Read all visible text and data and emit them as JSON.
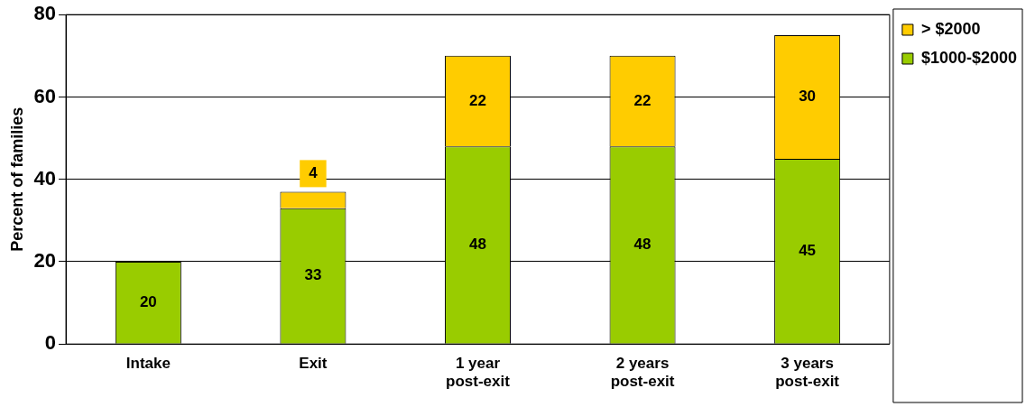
{
  "chart_data": {
    "type": "bar",
    "stacked": true,
    "ylabel": "Percent of families",
    "categories": [
      "Intake",
      "Exit",
      "1 year post-exit",
      "2 years post-exit",
      "3 years post-exit"
    ],
    "series": [
      {
        "name": "$1000-$2000",
        "color": "#99cc00",
        "values": [
          20,
          33,
          48,
          48,
          45
        ]
      },
      {
        "name": "> $2000",
        "color": "#ffcc00",
        "values": [
          null,
          4,
          22,
          22,
          30
        ]
      }
    ],
    "ylim": [
      0,
      80
    ],
    "yticks": [
      0,
      20,
      40,
      60,
      80
    ],
    "grid": "y",
    "legend": "right",
    "data_labels": true
  }
}
